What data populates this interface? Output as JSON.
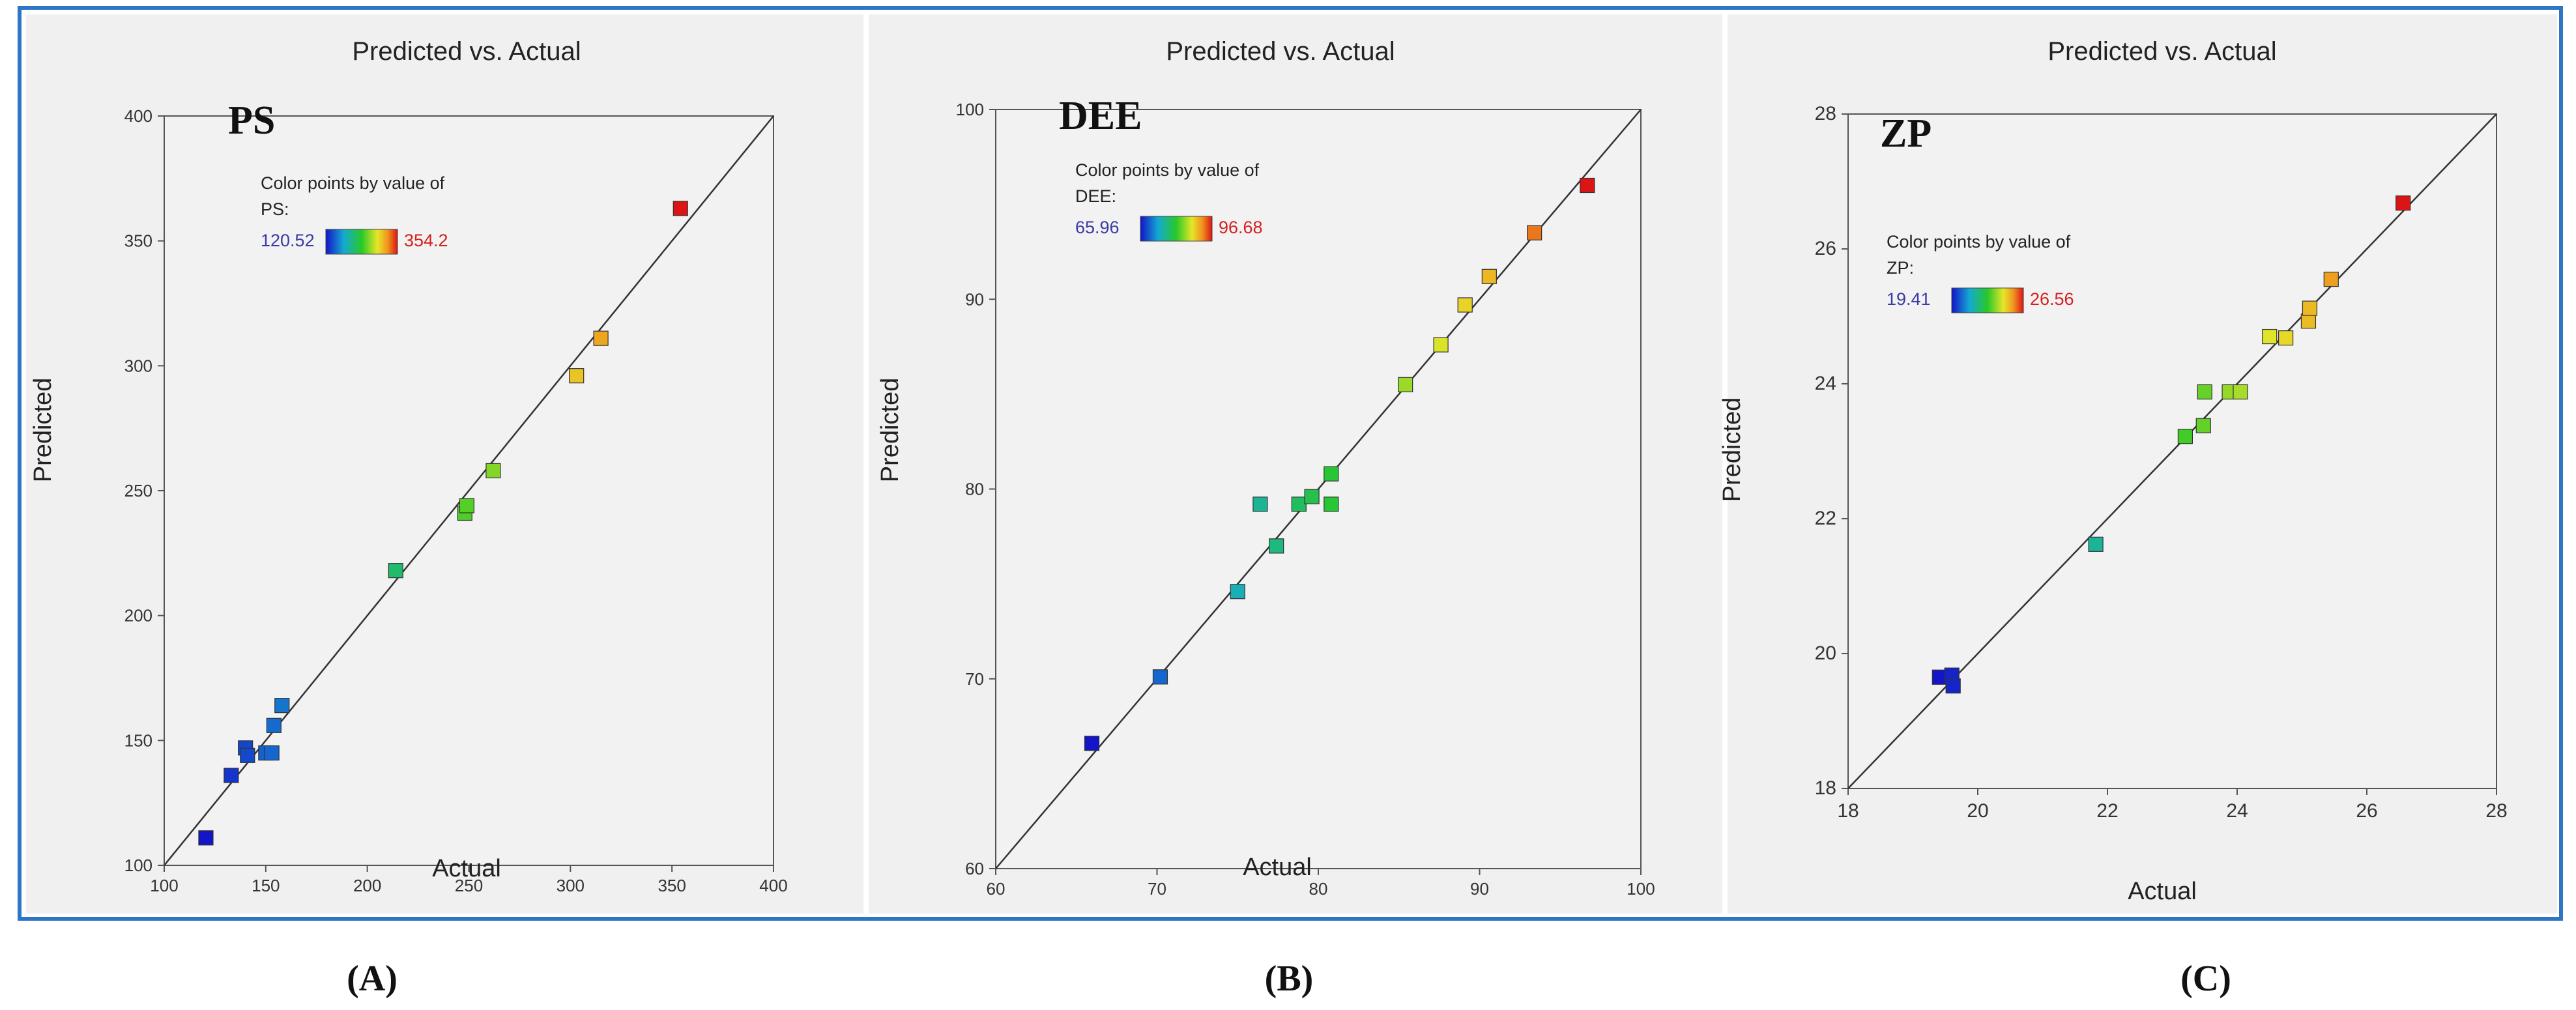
{
  "chart_data": [
    {
      "type": "scatter",
      "panel_label": "A",
      "title": "Predicted vs. Actual",
      "inner_label": "PS",
      "xlabel": "Actual",
      "ylabel": "Predicted",
      "xlim": [
        100,
        400
      ],
      "ylim": [
        100,
        400
      ],
      "xticks": [
        "100",
        "150",
        "200",
        "250",
        "300",
        "350",
        "400"
      ],
      "yticks": [
        "100",
        "150",
        "200",
        "250",
        "300",
        "350",
        "400"
      ],
      "legend": {
        "title_line1": "Color points by value of",
        "title_line2": "PS:",
        "min_label": "120.52",
        "max_label": "354.2",
        "min": 120.52,
        "max": 354.2
      },
      "line": {
        "from": [
          100,
          100
        ],
        "to": [
          400,
          400
        ]
      },
      "points": [
        {
          "x": 120.52,
          "y": 111
        },
        {
          "x": 133,
          "y": 136
        },
        {
          "x": 140,
          "y": 147
        },
        {
          "x": 141,
          "y": 144
        },
        {
          "x": 150,
          "y": 145
        },
        {
          "x": 153,
          "y": 145
        },
        {
          "x": 154,
          "y": 156
        },
        {
          "x": 158,
          "y": 164
        },
        {
          "x": 214,
          "y": 218
        },
        {
          "x": 248,
          "y": 241
        },
        {
          "x": 249,
          "y": 244
        },
        {
          "x": 262,
          "y": 258
        },
        {
          "x": 303,
          "y": 296
        },
        {
          "x": 315,
          "y": 311
        },
        {
          "x": 354.2,
          "y": 363
        }
      ]
    },
    {
      "type": "scatter",
      "panel_label": "B",
      "title": "Predicted vs. Actual",
      "inner_label": "DEE",
      "xlabel": "Actual",
      "ylabel": "Predicted",
      "xlim": [
        60,
        100
      ],
      "ylim": [
        60,
        100
      ],
      "xticks": [
        "60",
        "70",
        "80",
        "90",
        "100"
      ],
      "yticks": [
        "60",
        "70",
        "80",
        "90",
        "100"
      ],
      "legend": {
        "title_line1": "Color points by value of",
        "title_line2": "DEE:",
        "min_label": "65.96",
        "max_label": "96.68",
        "min": 65.96,
        "max": 96.68
      },
      "line": {
        "from": [
          60,
          60
        ],
        "to": [
          100,
          100
        ]
      },
      "points": [
        {
          "x": 65.96,
          "y": 66.6
        },
        {
          "x": 70.2,
          "y": 70.1
        },
        {
          "x": 75.0,
          "y": 74.6
        },
        {
          "x": 76.4,
          "y": 79.2
        },
        {
          "x": 77.4,
          "y": 77.0
        },
        {
          "x": 78.8,
          "y": 79.2
        },
        {
          "x": 79.6,
          "y": 79.6
        },
        {
          "x": 80.8,
          "y": 79.2
        },
        {
          "x": 80.8,
          "y": 80.8
        },
        {
          "x": 85.4,
          "y": 85.5
        },
        {
          "x": 87.6,
          "y": 87.6
        },
        {
          "x": 89.1,
          "y": 89.7
        },
        {
          "x": 90.6,
          "y": 91.2
        },
        {
          "x": 93.4,
          "y": 93.5
        },
        {
          "x": 96.68,
          "y": 96.0
        }
      ]
    },
    {
      "type": "scatter",
      "panel_label": "C",
      "title": "Predicted vs. Actual",
      "inner_label": "ZP",
      "xlabel": "Actual",
      "ylabel": "Predicted",
      "xlim": [
        18,
        28
      ],
      "ylim": [
        18,
        28
      ],
      "xticks": [
        "18",
        "20",
        "22",
        "24",
        "26",
        "28"
      ],
      "yticks": [
        "18",
        "20",
        "22",
        "24",
        "26",
        "28"
      ],
      "legend": {
        "title_line1": "Color points by value of",
        "title_line2": "ZP:",
        "min_label": "19.41",
        "max_label": "26.56",
        "min": 19.41,
        "max": 26.56
      },
      "line": {
        "from": [
          18,
          18
        ],
        "to": [
          28,
          28
        ]
      },
      "points": [
        {
          "x": 19.41,
          "y": 19.65
        },
        {
          "x": 19.6,
          "y": 19.68
        },
        {
          "x": 19.62,
          "y": 19.52
        },
        {
          "x": 21.82,
          "y": 21.62
        },
        {
          "x": 23.2,
          "y": 23.22
        },
        {
          "x": 23.48,
          "y": 23.38
        },
        {
          "x": 23.5,
          "y": 23.88
        },
        {
          "x": 23.88,
          "y": 23.88
        },
        {
          "x": 24.05,
          "y": 23.88
        },
        {
          "x": 24.5,
          "y": 24.7
        },
        {
          "x": 24.75,
          "y": 24.68
        },
        {
          "x": 25.1,
          "y": 24.93
        },
        {
          "x": 25.12,
          "y": 25.12
        },
        {
          "x": 25.45,
          "y": 25.55
        },
        {
          "x": 26.56,
          "y": 26.68
        }
      ]
    }
  ]
}
